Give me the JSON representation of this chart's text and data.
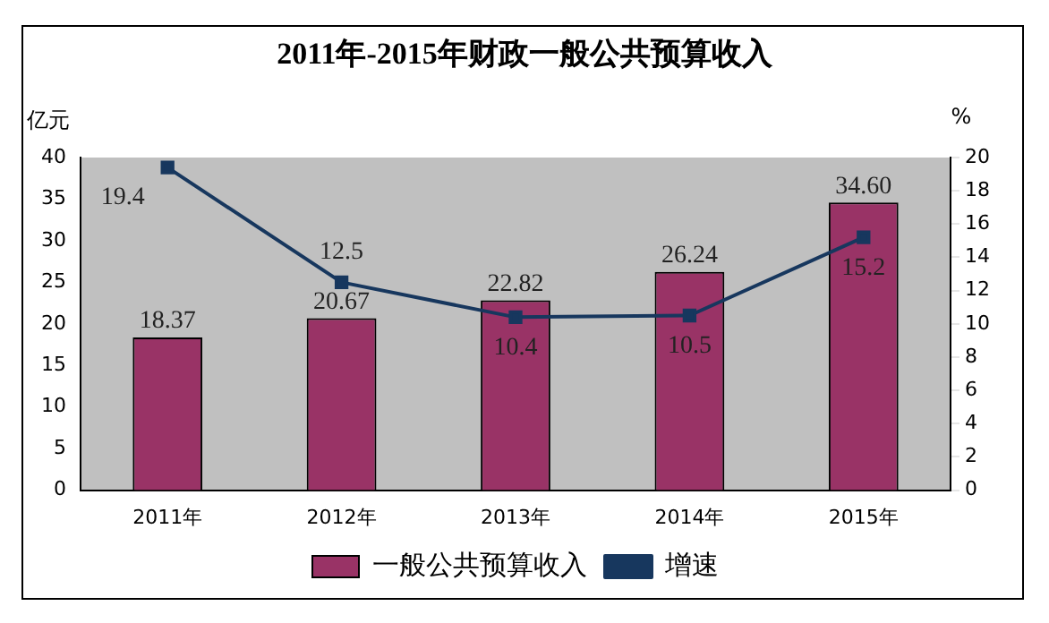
{
  "chart_data": {
    "type": "bar",
    "title": "2011年-2015年财政一般公共预算收入",
    "ylabel": "亿元",
    "y2label": "%",
    "categories": [
      "2011年",
      "2012年",
      "2013年",
      "2014年",
      "2015年"
    ],
    "series": [
      {
        "name": "一般公共预算收入",
        "color": "#993366",
        "values": [
          18.37,
          20.67,
          22.82,
          26.24,
          34.6
        ],
        "value_labels": [
          "18.37",
          "20.67",
          "22.82",
          "26.24",
          "34.60"
        ]
      },
      {
        "name": "增速",
        "type": "line",
        "axis": "y2",
        "color": "#17375e",
        "marker": "square",
        "values": [
          19.4,
          12.5,
          10.4,
          10.5,
          15.2
        ]
      }
    ],
    "ylim": [
      0,
      40
    ],
    "yticks": [
      0,
      5,
      10,
      15,
      20,
      25,
      30,
      35,
      40
    ],
    "y2lim": [
      0,
      20
    ],
    "y2ticks": [
      0,
      2,
      4,
      6,
      8,
      10,
      12,
      14,
      16,
      18,
      20
    ],
    "data_labels": true,
    "grid": false,
    "legend": "bottom"
  }
}
